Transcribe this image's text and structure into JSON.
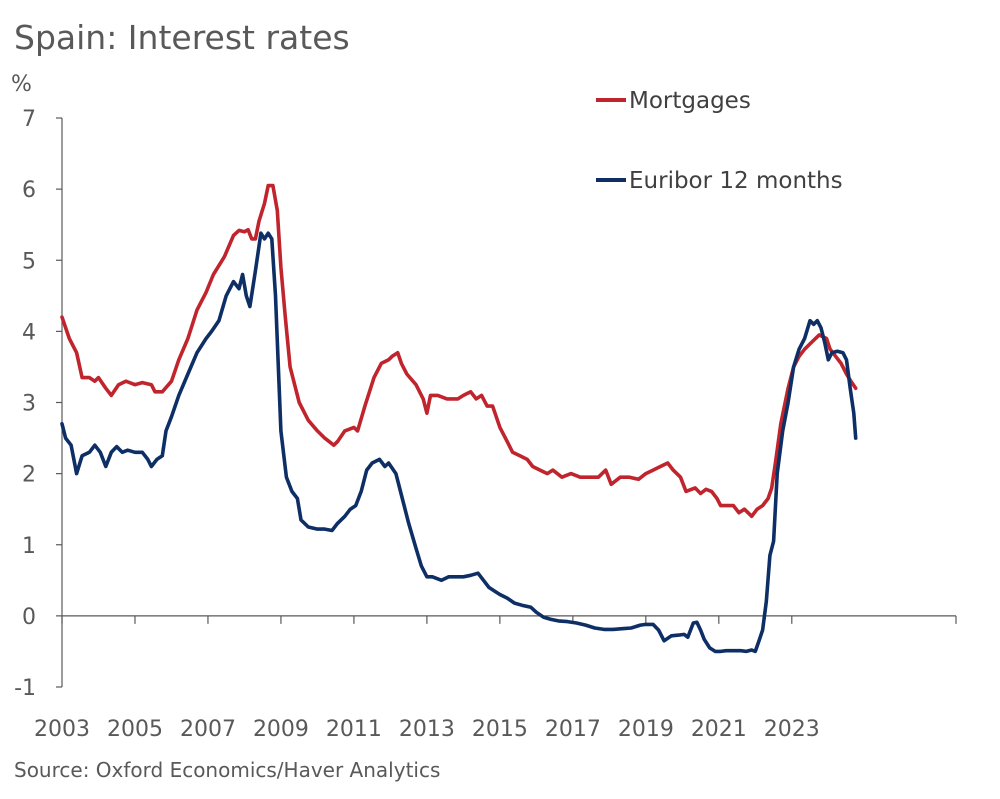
{
  "chart_data": {
    "type": "line",
    "title": "Spain: Interest rates",
    "source": "Source: Oxford Economics/Haver Analytics",
    "ylabel": "%",
    "xlabel": "",
    "ylim": [
      -1,
      7
    ],
    "xlim": [
      2003,
      2024.75
    ],
    "yticks": [
      -1,
      0,
      1,
      2,
      3,
      4,
      5,
      6,
      7
    ],
    "xticks": [
      "2003",
      "2005",
      "2007",
      "2009",
      "2011",
      "2013",
      "2015",
      "2017",
      "2019",
      "2021",
      "2023"
    ],
    "legend_position": "top-right",
    "colors": {
      "mortgages": "#c0252d",
      "euribor": "#0e2f65",
      "axis": "#595959"
    },
    "series": [
      {
        "name": "Mortgages",
        "color": "#c0252d",
        "points": [
          [
            2003.0,
            4.2
          ],
          [
            2003.2,
            3.9
          ],
          [
            2003.4,
            3.7
          ],
          [
            2003.55,
            3.35
          ],
          [
            2003.75,
            3.35
          ],
          [
            2003.9,
            3.3
          ],
          [
            2004.0,
            3.35
          ],
          [
            2004.2,
            3.2
          ],
          [
            2004.35,
            3.1
          ],
          [
            2004.55,
            3.25
          ],
          [
            2004.75,
            3.3
          ],
          [
            2005.0,
            3.25
          ],
          [
            2005.2,
            3.28
          ],
          [
            2005.45,
            3.25
          ],
          [
            2005.55,
            3.15
          ],
          [
            2005.75,
            3.15
          ],
          [
            2006.0,
            3.3
          ],
          [
            2006.2,
            3.6
          ],
          [
            2006.45,
            3.9
          ],
          [
            2006.7,
            4.3
          ],
          [
            2006.95,
            4.55
          ],
          [
            2007.15,
            4.8
          ],
          [
            2007.45,
            5.05
          ],
          [
            2007.7,
            5.35
          ],
          [
            2007.85,
            5.42
          ],
          [
            2008.0,
            5.4
          ],
          [
            2008.1,
            5.43
          ],
          [
            2008.2,
            5.3
          ],
          [
            2008.3,
            5.3
          ],
          [
            2008.4,
            5.55
          ],
          [
            2008.55,
            5.8
          ],
          [
            2008.65,
            6.05
          ],
          [
            2008.78,
            6.05
          ],
          [
            2008.9,
            5.7
          ],
          [
            2009.0,
            4.9
          ],
          [
            2009.12,
            4.2
          ],
          [
            2009.25,
            3.5
          ],
          [
            2009.5,
            3.0
          ],
          [
            2009.75,
            2.75
          ],
          [
            2010.0,
            2.6
          ],
          [
            2010.2,
            2.5
          ],
          [
            2010.45,
            2.4
          ],
          [
            2010.55,
            2.45
          ],
          [
            2010.75,
            2.6
          ],
          [
            2011.0,
            2.65
          ],
          [
            2011.1,
            2.6
          ],
          [
            2011.3,
            2.95
          ],
          [
            2011.55,
            3.35
          ],
          [
            2011.75,
            3.55
          ],
          [
            2011.95,
            3.6
          ],
          [
            2012.05,
            3.65
          ],
          [
            2012.2,
            3.7
          ],
          [
            2012.3,
            3.55
          ],
          [
            2012.45,
            3.4
          ],
          [
            2012.7,
            3.25
          ],
          [
            2012.9,
            3.05
          ],
          [
            2013.0,
            2.85
          ],
          [
            2013.1,
            3.1
          ],
          [
            2013.3,
            3.1
          ],
          [
            2013.55,
            3.05
          ],
          [
            2013.85,
            3.05
          ],
          [
            2014.0,
            3.1
          ],
          [
            2014.2,
            3.15
          ],
          [
            2014.35,
            3.05
          ],
          [
            2014.5,
            3.1
          ],
          [
            2014.65,
            2.95
          ],
          [
            2014.8,
            2.95
          ],
          [
            2015.0,
            2.65
          ],
          [
            2015.2,
            2.45
          ],
          [
            2015.35,
            2.3
          ],
          [
            2015.55,
            2.25
          ],
          [
            2015.75,
            2.2
          ],
          [
            2015.9,
            2.1
          ],
          [
            2016.1,
            2.05
          ],
          [
            2016.3,
            2.0
          ],
          [
            2016.45,
            2.05
          ],
          [
            2016.7,
            1.95
          ],
          [
            2016.95,
            2.0
          ],
          [
            2017.2,
            1.95
          ],
          [
            2017.45,
            1.95
          ],
          [
            2017.7,
            1.95
          ],
          [
            2017.9,
            2.05
          ],
          [
            2018.05,
            1.85
          ],
          [
            2018.3,
            1.95
          ],
          [
            2018.55,
            1.95
          ],
          [
            2018.8,
            1.92
          ],
          [
            2019.0,
            2.0
          ],
          [
            2019.2,
            2.05
          ],
          [
            2019.4,
            2.1
          ],
          [
            2019.6,
            2.15
          ],
          [
            2019.75,
            2.05
          ],
          [
            2019.95,
            1.95
          ],
          [
            2020.1,
            1.75
          ],
          [
            2020.35,
            1.8
          ],
          [
            2020.5,
            1.72
          ],
          [
            2020.65,
            1.78
          ],
          [
            2020.8,
            1.75
          ],
          [
            2020.95,
            1.65
          ],
          [
            2021.05,
            1.55
          ],
          [
            2021.2,
            1.55
          ],
          [
            2021.4,
            1.55
          ],
          [
            2021.55,
            1.45
          ],
          [
            2021.7,
            1.5
          ],
          [
            2021.8,
            1.45
          ],
          [
            2021.9,
            1.4
          ],
          [
            2022.05,
            1.5
          ],
          [
            2022.2,
            1.55
          ],
          [
            2022.35,
            1.65
          ],
          [
            2022.45,
            1.8
          ],
          [
            2022.55,
            2.15
          ],
          [
            2022.7,
            2.7
          ],
          [
            2022.9,
            3.2
          ],
          [
            2023.05,
            3.5
          ],
          [
            2023.2,
            3.65
          ],
          [
            2023.35,
            3.75
          ],
          [
            2023.55,
            3.85
          ],
          [
            2023.75,
            3.95
          ],
          [
            2023.95,
            3.9
          ],
          [
            2024.05,
            3.75
          ],
          [
            2024.2,
            3.65
          ],
          [
            2024.35,
            3.55
          ],
          [
            2024.5,
            3.4
          ],
          [
            2024.62,
            3.3
          ],
          [
            2024.75,
            3.2
          ]
        ]
      },
      {
        "name": "Euribor 12 months",
        "color": "#0e2f65",
        "points": [
          [
            2003.0,
            2.7
          ],
          [
            2003.1,
            2.5
          ],
          [
            2003.25,
            2.4
          ],
          [
            2003.4,
            2.0
          ],
          [
            2003.55,
            2.25
          ],
          [
            2003.75,
            2.3
          ],
          [
            2003.9,
            2.4
          ],
          [
            2004.05,
            2.3
          ],
          [
            2004.2,
            2.1
          ],
          [
            2004.35,
            2.3
          ],
          [
            2004.5,
            2.38
          ],
          [
            2004.65,
            2.3
          ],
          [
            2004.8,
            2.33
          ],
          [
            2005.0,
            2.3
          ],
          [
            2005.2,
            2.3
          ],
          [
            2005.35,
            2.2
          ],
          [
            2005.45,
            2.1
          ],
          [
            2005.6,
            2.2
          ],
          [
            2005.75,
            2.25
          ],
          [
            2005.85,
            2.6
          ],
          [
            2006.0,
            2.8
          ],
          [
            2006.2,
            3.1
          ],
          [
            2006.45,
            3.4
          ],
          [
            2006.7,
            3.7
          ],
          [
            2006.95,
            3.9
          ],
          [
            2007.1,
            4.0
          ],
          [
            2007.3,
            4.15
          ],
          [
            2007.5,
            4.5
          ],
          [
            2007.7,
            4.7
          ],
          [
            2007.85,
            4.6
          ],
          [
            2007.95,
            4.8
          ],
          [
            2008.05,
            4.5
          ],
          [
            2008.15,
            4.35
          ],
          [
            2008.3,
            4.85
          ],
          [
            2008.45,
            5.38
          ],
          [
            2008.55,
            5.3
          ],
          [
            2008.65,
            5.38
          ],
          [
            2008.75,
            5.3
          ],
          [
            2008.85,
            4.5
          ],
          [
            2009.0,
            2.6
          ],
          [
            2009.15,
            1.95
          ],
          [
            2009.3,
            1.75
          ],
          [
            2009.45,
            1.65
          ],
          [
            2009.55,
            1.35
          ],
          [
            2009.75,
            1.25
          ],
          [
            2010.0,
            1.22
          ],
          [
            2010.2,
            1.22
          ],
          [
            2010.4,
            1.2
          ],
          [
            2010.55,
            1.3
          ],
          [
            2010.75,
            1.4
          ],
          [
            2010.9,
            1.5
          ],
          [
            2011.05,
            1.55
          ],
          [
            2011.2,
            1.75
          ],
          [
            2011.35,
            2.05
          ],
          [
            2011.5,
            2.15
          ],
          [
            2011.7,
            2.2
          ],
          [
            2011.85,
            2.1
          ],
          [
            2011.95,
            2.15
          ],
          [
            2012.15,
            2.0
          ],
          [
            2012.3,
            1.7
          ],
          [
            2012.5,
            1.3
          ],
          [
            2012.7,
            0.95
          ],
          [
            2012.85,
            0.7
          ],
          [
            2013.0,
            0.55
          ],
          [
            2013.15,
            0.55
          ],
          [
            2013.4,
            0.5
          ],
          [
            2013.6,
            0.55
          ],
          [
            2013.85,
            0.55
          ],
          [
            2014.0,
            0.55
          ],
          [
            2014.2,
            0.57
          ],
          [
            2014.4,
            0.6
          ],
          [
            2014.55,
            0.5
          ],
          [
            2014.7,
            0.4
          ],
          [
            2014.85,
            0.35
          ],
          [
            2015.0,
            0.3
          ],
          [
            2015.2,
            0.25
          ],
          [
            2015.4,
            0.18
          ],
          [
            2015.6,
            0.15
          ],
          [
            2015.85,
            0.12
          ],
          [
            2016.0,
            0.05
          ],
          [
            2016.2,
            -0.02
          ],
          [
            2016.4,
            -0.05
          ],
          [
            2016.6,
            -0.07
          ],
          [
            2016.85,
            -0.08
          ],
          [
            2017.1,
            -0.1
          ],
          [
            2017.35,
            -0.13
          ],
          [
            2017.6,
            -0.17
          ],
          [
            2017.85,
            -0.19
          ],
          [
            2018.1,
            -0.19
          ],
          [
            2018.35,
            -0.18
          ],
          [
            2018.6,
            -0.17
          ],
          [
            2018.85,
            -0.13
          ],
          [
            2019.0,
            -0.12
          ],
          [
            2019.2,
            -0.12
          ],
          [
            2019.35,
            -0.2
          ],
          [
            2019.5,
            -0.35
          ],
          [
            2019.7,
            -0.28
          ],
          [
            2019.9,
            -0.27
          ],
          [
            2020.05,
            -0.26
          ],
          [
            2020.15,
            -0.3
          ],
          [
            2020.3,
            -0.1
          ],
          [
            2020.4,
            -0.09
          ],
          [
            2020.5,
            -0.2
          ],
          [
            2020.6,
            -0.33
          ],
          [
            2020.75,
            -0.45
          ],
          [
            2020.9,
            -0.5
          ],
          [
            2021.05,
            -0.5
          ],
          [
            2021.2,
            -0.49
          ],
          [
            2021.4,
            -0.49
          ],
          [
            2021.6,
            -0.49
          ],
          [
            2021.75,
            -0.5
          ],
          [
            2021.9,
            -0.48
          ],
          [
            2022.0,
            -0.5
          ],
          [
            2022.1,
            -0.35
          ],
          [
            2022.2,
            -0.2
          ],
          [
            2022.3,
            0.2
          ],
          [
            2022.4,
            0.85
          ],
          [
            2022.5,
            1.05
          ],
          [
            2022.6,
            2.0
          ],
          [
            2022.75,
            2.6
          ],
          [
            2022.9,
            3.0
          ],
          [
            2023.05,
            3.5
          ],
          [
            2023.2,
            3.75
          ],
          [
            2023.35,
            3.9
          ],
          [
            2023.5,
            4.15
          ],
          [
            2023.6,
            4.1
          ],
          [
            2023.7,
            4.15
          ],
          [
            2023.8,
            4.05
          ],
          [
            2023.9,
            3.85
          ],
          [
            2024.0,
            3.6
          ],
          [
            2024.1,
            3.7
          ],
          [
            2024.25,
            3.72
          ],
          [
            2024.4,
            3.7
          ],
          [
            2024.5,
            3.6
          ],
          [
            2024.6,
            3.2
          ],
          [
            2024.7,
            2.85
          ],
          [
            2024.75,
            2.5
          ]
        ]
      }
    ]
  }
}
